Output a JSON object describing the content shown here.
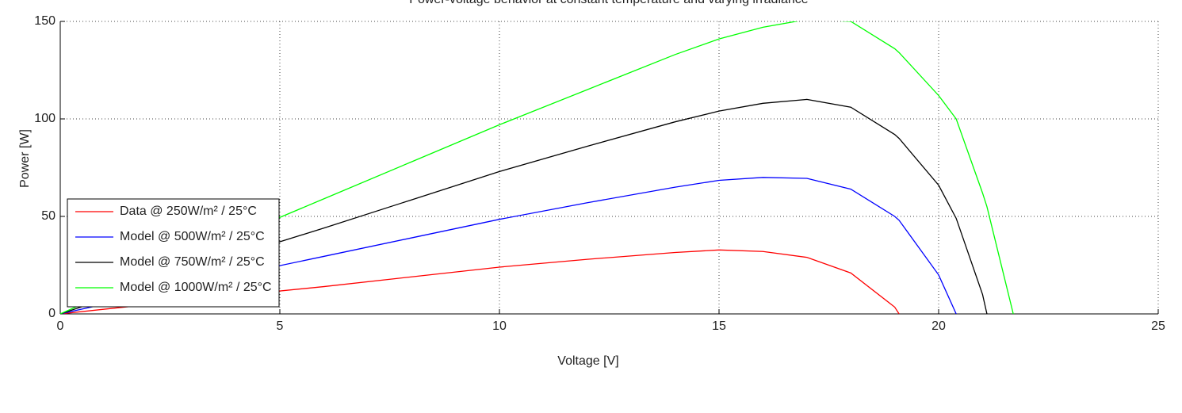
{
  "chart_data": {
    "type": "line",
    "title": "Power-voltage behavior at constant temperature and varying irradiance",
    "x_label": "Voltage [V]",
    "y_label": "Power [W]",
    "x": [
      0,
      2,
      4,
      6,
      8,
      10,
      12,
      14,
      15,
      16,
      17,
      18,
      19,
      19.1,
      20,
      20.4,
      21,
      21.1,
      21.7
    ],
    "series": [
      {
        "name": "Data @ 250W/m² / 25°C",
        "color": "#ff0000",
        "values": [
          0,
          4.8,
          9.5,
          14,
          19,
          24,
          28,
          31.5,
          32.8,
          32,
          29,
          21,
          3.5,
          0,
          null,
          null,
          null,
          null,
          null
        ]
      },
      {
        "name": "Model @ 500W/m² / 25°C",
        "color": "#0000ff",
        "values": [
          0,
          10,
          20,
          29.5,
          39,
          48.5,
          57,
          65,
          68.5,
          70,
          69.5,
          64,
          50,
          48,
          20,
          0,
          null,
          null,
          null
        ]
      },
      {
        "name": "Model @ 750W/m² / 25°C",
        "color": "#000000",
        "values": [
          0,
          15,
          30,
          44,
          58.5,
          73,
          86,
          98.5,
          104,
          108,
          110,
          106,
          92,
          90,
          66,
          49,
          10,
          0,
          null
        ]
      },
      {
        "name": "Model @ 1000W/m² / 25°C",
        "color": "#00ff00",
        "values": [
          0,
          20,
          40,
          59,
          78,
          97,
          115,
          133,
          141,
          147,
          151,
          150,
          136,
          134,
          112,
          100,
          62,
          55,
          0
        ]
      }
    ],
    "xlim": [
      0,
      25
    ],
    "xticks": [
      0,
      5,
      10,
      15,
      20,
      25
    ],
    "ylim": [
      0,
      150
    ],
    "yticks": [
      0,
      50,
      100,
      150
    ],
    "grid": true,
    "legend": "lower left"
  }
}
